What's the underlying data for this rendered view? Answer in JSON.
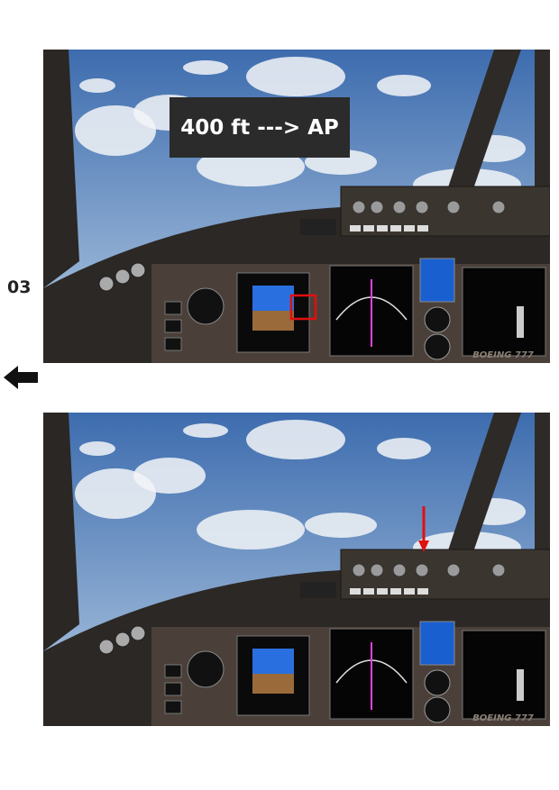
{
  "step": "03",
  "label": "400 ft ---> AP",
  "images": [
    {
      "brand": "BOEING 777"
    },
    {
      "brand": "BOEING 777"
    }
  ]
}
